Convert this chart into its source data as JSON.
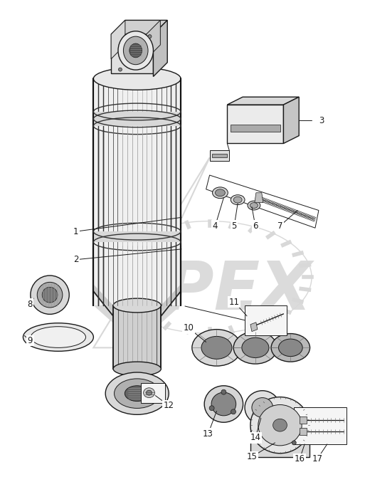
{
  "background_color": "#ffffff",
  "line_color": "#1a1a1a",
  "figsize": [
    5.13,
    6.77
  ],
  "dpi": 100,
  "watermark_text": "OPEX",
  "watermark_color": "#d8d8d8",
  "label_fontsize": 8.5,
  "labels": [
    "1",
    "2",
    "3",
    "4",
    "5",
    "6",
    "7",
    "8",
    "9",
    "10",
    "11",
    "12",
    "13",
    "14",
    "15",
    "16",
    "17"
  ]
}
